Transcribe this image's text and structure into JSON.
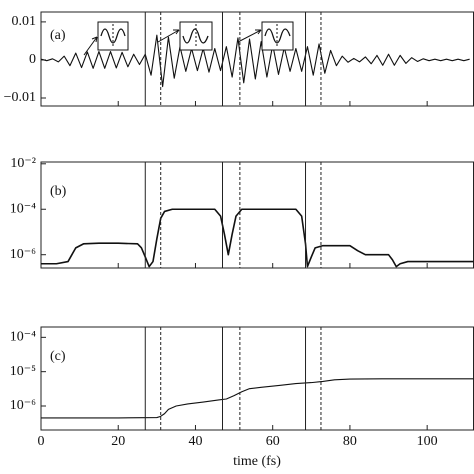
{
  "chart_data": [
    {
      "type": "line",
      "label": "(a)",
      "xlim": [
        0,
        112
      ],
      "ylim": [
        -0.0121,
        0.0126
      ],
      "yticks": [
        {
          "value": 0.01,
          "label": "0.01"
        },
        0,
        {
          "value": -0.01,
          "label": "−0.01"
        }
      ],
      "vlines": [
        27,
        47,
        68.5
      ],
      "dashed_vlines": [
        31,
        51.5,
        72.5
      ],
      "color": "#111",
      "x": [
        0,
        1.5,
        3,
        4.5,
        6,
        7.5,
        9,
        10.5,
        12,
        13.5,
        15,
        16.5,
        18,
        19.5,
        21,
        22.5,
        24,
        25.5,
        27,
        28.5,
        30,
        31.5,
        33,
        34.5,
        36,
        37.5,
        39,
        40.5,
        42,
        43.5,
        45,
        46.5,
        48,
        49.5,
        51,
        52.5,
        54,
        55.5,
        57,
        58.5,
        60,
        61.5,
        63,
        64.5,
        66,
        67.5,
        69,
        70.5,
        72,
        73.5,
        75,
        76.5,
        78,
        79.5,
        81,
        82.5,
        84,
        85.5,
        87,
        88.5,
        90,
        91.5,
        93,
        94.5,
        96,
        97.5,
        99,
        100.5,
        102,
        103.5,
        105,
        106.5,
        108,
        109.5,
        111
      ],
      "values": [
        0.0002,
        -0.0002,
        0.0003,
        -0.0005,
        0.001,
        -0.0015,
        0.0018,
        -0.002,
        0.0021,
        -0.0022,
        0.0022,
        -0.0022,
        0.0022,
        -0.0021,
        0.002,
        -0.0018,
        0.0015,
        -0.0012,
        0.0015,
        -0.004,
        0.0065,
        -0.007,
        0.006,
        -0.0048,
        0.0035,
        -0.003,
        0.003,
        -0.0028,
        0.003,
        -0.0032,
        0.003,
        -0.0028,
        0.0035,
        -0.0045,
        0.0058,
        -0.006,
        0.0055,
        -0.005,
        0.0048,
        -0.0045,
        0.004,
        -0.0038,
        0.0033,
        -0.003,
        0.003,
        -0.003,
        0.0035,
        -0.004,
        0.0042,
        -0.0035,
        0.0025,
        -0.0015,
        0.001,
        -0.0006,
        0.0004,
        -0.0005,
        0.0008,
        -0.001,
        0.0012,
        -0.0014,
        0.0015,
        -0.0014,
        0.0012,
        -0.0009,
        0.0006,
        -0.0004,
        0.0003,
        -0.0002,
        0.0002,
        -0.0002,
        0.0002,
        -0.0002,
        0.0002,
        -0.0002,
        0.0002
      ]
    },
    {
      "type": "line",
      "label": "(b)",
      "log_y": true,
      "xlim": [
        0,
        112
      ],
      "ylim": [
        2.6e-07,
        0.012
      ],
      "yticks": [
        {
          "value": 0.01,
          "label": "10⁻²"
        },
        {
          "value": 0.0001,
          "label": "10⁻⁴"
        },
        {
          "value": 1e-06,
          "label": "10⁻⁶"
        }
      ],
      "vlines": [
        27,
        47,
        68.5
      ],
      "dashed_vlines": [
        31,
        51.5,
        72.5
      ],
      "color": "#111",
      "x": [
        0,
        4,
        7,
        8,
        9,
        11,
        15,
        20,
        25,
        26,
        27,
        28,
        29,
        30,
        31,
        32,
        34,
        40,
        45,
        46.5,
        47.5,
        48.5,
        49.5,
        50.5,
        52,
        60,
        66,
        67.5,
        68.5,
        69,
        70,
        71,
        73,
        80,
        82,
        84,
        90,
        91,
        92,
        93,
        95,
        112
      ],
      "values": [
        4e-07,
        4e-07,
        5e-07,
        1e-06,
        2e-06,
        3e-06,
        3.2e-06,
        3.2e-06,
        3e-06,
        2e-06,
        8e-07,
        3e-07,
        5e-07,
        5e-06,
        4e-05,
        8e-05,
        0.0001,
        0.0001,
        0.0001,
        5e-05,
        8e-06,
        1e-06,
        8e-06,
        5e-05,
        0.0001,
        0.0001,
        0.0001,
        5e-05,
        3e-06,
        3e-07,
        8e-07,
        2e-06,
        2.5e-06,
        2.5e-06,
        1.5e-06,
        1e-06,
        1e-06,
        6e-07,
        3e-07,
        4e-07,
        5e-07,
        5e-07
      ]
    },
    {
      "type": "line",
      "label": "(c)",
      "log_y": true,
      "xlabel": "time  (fs)",
      "xlim": [
        0,
        112
      ],
      "ylim": [
        2e-07,
        0.0002
      ],
      "xticks": [
        0,
        20,
        40,
        60,
        80,
        100
      ],
      "yticks": [
        {
          "value": 0.0001,
          "label": "10⁻⁴"
        },
        {
          "value": 1e-05,
          "label": "10⁻⁵"
        },
        {
          "value": 1e-06,
          "label": "10⁻⁶"
        }
      ],
      "vlines": [
        27,
        47,
        68.5
      ],
      "dashed_vlines": [
        31,
        51.5,
        72.5
      ],
      "color": "#111",
      "x": [
        0,
        10,
        20,
        30,
        31,
        32,
        33,
        35,
        38,
        42,
        46,
        48,
        50,
        52,
        54,
        57,
        62,
        66,
        70,
        73,
        76,
        80,
        90,
        100,
        112
      ],
      "values": [
        4.5e-07,
        4.5e-07,
        4.5e-07,
        4.6e-07,
        5e-07,
        6e-07,
        8e-07,
        1e-06,
        1.15e-06,
        1.3e-06,
        1.5e-06,
        1.6e-06,
        2e-06,
        2.6e-06,
        3.2e-06,
        3.5e-06,
        4e-06,
        4.5e-06,
        4.8e-06,
        5.2e-06,
        5.8e-06,
        6.1e-06,
        6.2e-06,
        6.2e-06,
        6.2e-06
      ]
    }
  ]
}
